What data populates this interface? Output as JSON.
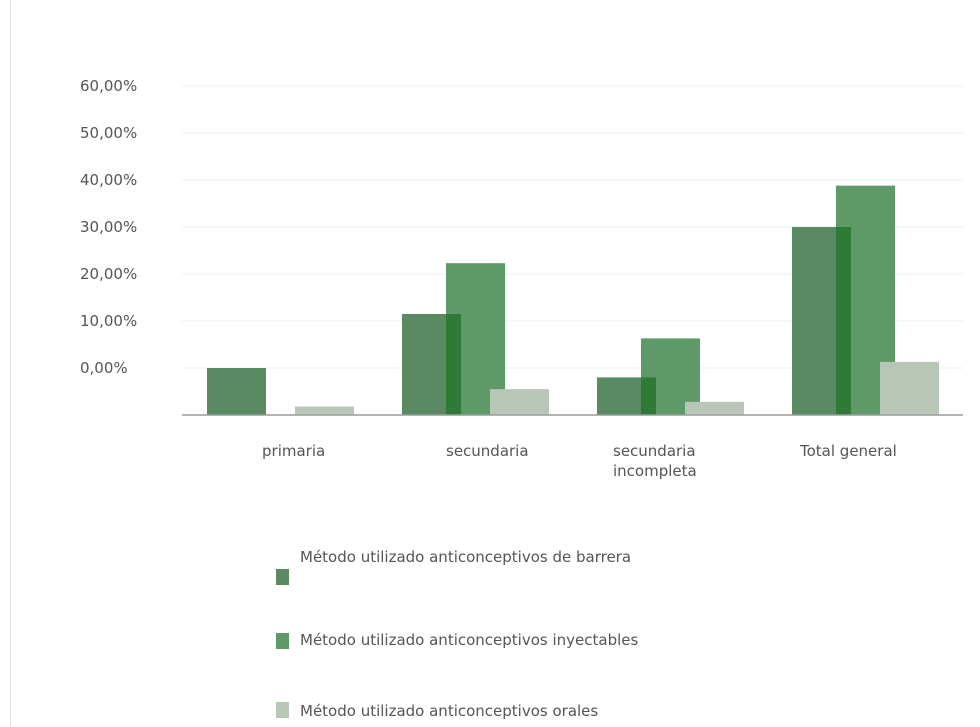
{
  "chart_data": {
    "type": "bar",
    "title": "",
    "xlabel": "",
    "ylabel": "",
    "categories": [
      "primaria",
      "secundaria",
      "secundaria\nincompleta",
      "Total general"
    ],
    "y_tick_labels": [
      "0,00%",
      "10,00%",
      "20,00%",
      "30,00%",
      "40,00%",
      "50,00%",
      "60,00%"
    ],
    "ylim": [
      -10,
      60
    ],
    "grid": true,
    "legend_position": "bottom",
    "series": [
      {
        "name": "Método utilizado anticonceptivos de barrera",
        "values": [
          0,
          11.5,
          -2.0,
          30.0
        ],
        "color": "#5a8a62"
      },
      {
        "name": "Método utilizado anticonceptivos inyectables",
        "values": [
          null,
          22.3,
          6.3,
          38.8
        ],
        "color": "#5e9a68"
      },
      {
        "name": "Método utilizado anticonceptivos orales",
        "values": [
          -8.2,
          -4.5,
          -7.2,
          1.3
        ],
        "color": "#b8c6b8"
      }
    ],
    "overlap_color": "#2f7a37"
  },
  "legend": {
    "items": [
      {
        "label": "Método utilizado anticonceptivos de barrera"
      },
      {
        "label": "Método utilizado anticonceptivos inyectables"
      },
      {
        "label": "Método utilizado anticonceptivos orales"
      }
    ]
  }
}
